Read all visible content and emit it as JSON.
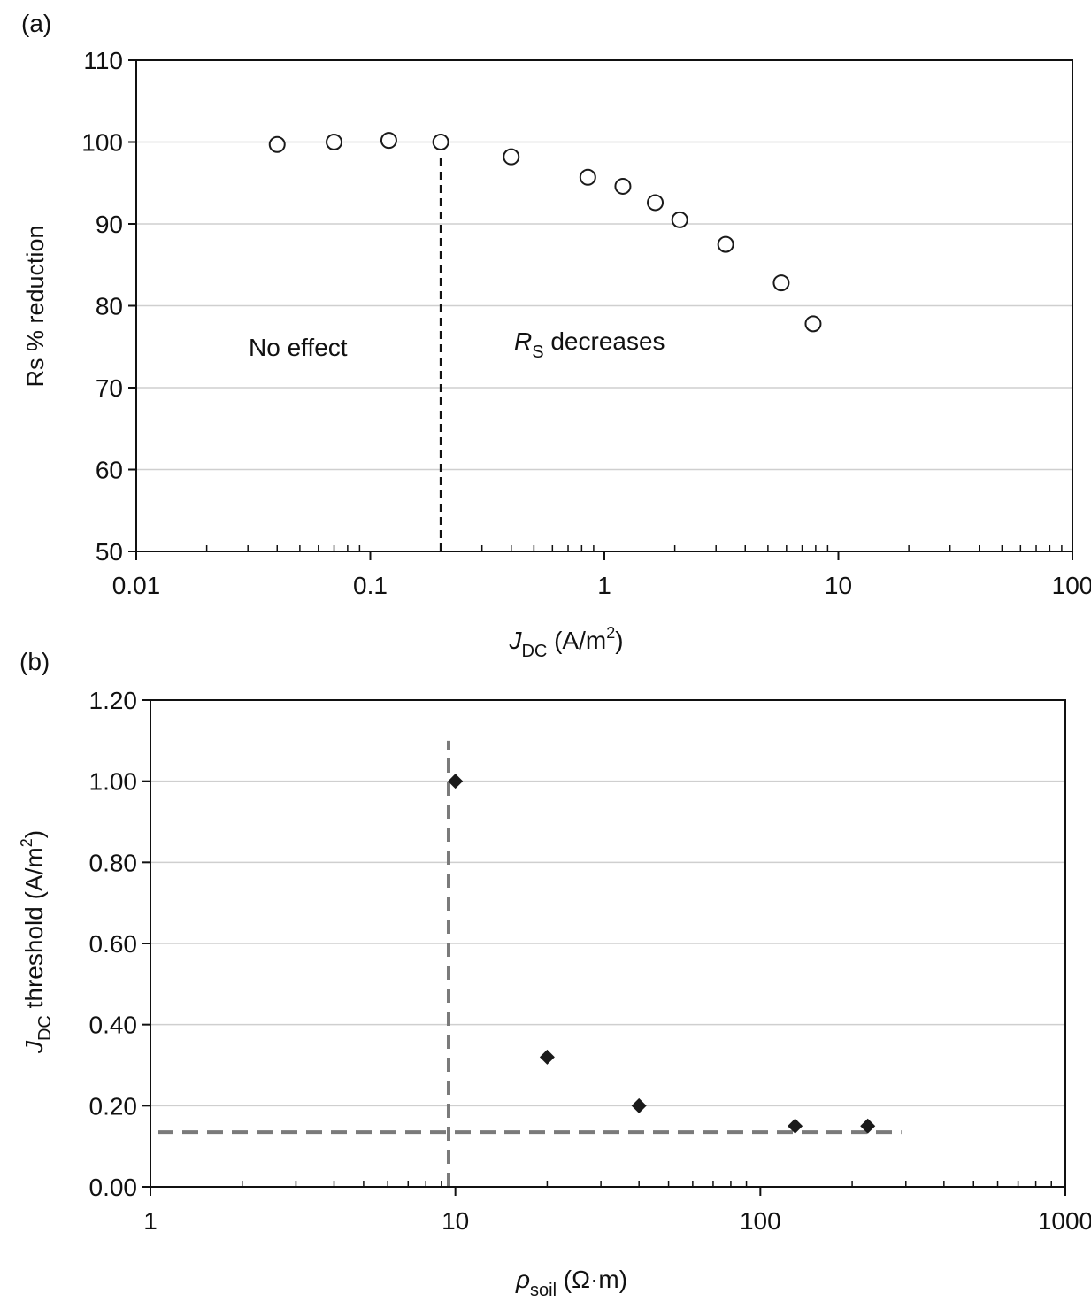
{
  "chart_data": [
    {
      "panel_label": "(a)",
      "type": "scatter",
      "xscale": "log",
      "xlim": [
        0.01,
        100
      ],
      "ylim": [
        50,
        110
      ],
      "xticks": [
        0.01,
        0.1,
        1,
        10,
        100
      ],
      "xtick_labels": [
        "0.01",
        "0.1",
        "1",
        "10",
        "100"
      ],
      "yticks": [
        50,
        60,
        70,
        80,
        90,
        100,
        110
      ],
      "ytick_labels": [
        "50",
        "60",
        "70",
        "80",
        "90",
        "100",
        "110"
      ],
      "ylabel": "Rs % reduction",
      "xlabel": {
        "main": "J",
        "sub": "DC",
        "units_pre": " (A/m",
        "sup": "2",
        "units_post": ")"
      },
      "grid": "horizontal",
      "marker": "open-circle",
      "points": [
        {
          "x": 0.04,
          "y": 99.7
        },
        {
          "x": 0.07,
          "y": 100.0
        },
        {
          "x": 0.12,
          "y": 100.2
        },
        {
          "x": 0.2,
          "y": 100.0
        },
        {
          "x": 0.4,
          "y": 98.2
        },
        {
          "x": 0.85,
          "y": 95.7
        },
        {
          "x": 1.2,
          "y": 94.6
        },
        {
          "x": 1.65,
          "y": 92.6
        },
        {
          "x": 2.1,
          "y": 90.5
        },
        {
          "x": 3.3,
          "y": 87.5
        },
        {
          "x": 5.7,
          "y": 82.8
        },
        {
          "x": 7.8,
          "y": 77.8
        }
      ],
      "threshold_line": {
        "x": 0.2,
        "y_from": 50,
        "y_to": 98.5,
        "style": "dashed"
      },
      "annotations": {
        "no_effect": "No effect",
        "decreases_main": "R",
        "decreases_sub": "S",
        "decreases_rest": " decreases"
      }
    },
    {
      "panel_label": "(b)",
      "type": "scatter",
      "xscale": "log",
      "xlim": [
        1,
        1000
      ],
      "ylim": [
        0,
        1.2
      ],
      "xticks": [
        1,
        10,
        100,
        1000
      ],
      "xtick_labels": [
        "1",
        "10",
        "100",
        "1000"
      ],
      "yticks": [
        0,
        0.2,
        0.4,
        0.6,
        0.8,
        1.0,
        1.2
      ],
      "ytick_labels": [
        "0.00",
        "0.20",
        "0.40",
        "0.60",
        "0.80",
        "1.00",
        "1.20"
      ],
      "ylabel": {
        "main": "J",
        "sub": "DC",
        "rest": " threshold (A/m",
        "sup": "2",
        "end": ")"
      },
      "xlabel": {
        "main": "ρ",
        "sub": "soil",
        "units": " (Ω·m)"
      },
      "grid": "horizontal",
      "marker": "filled-diamond",
      "points": [
        {
          "x": 10,
          "y": 1.0
        },
        {
          "x": 20,
          "y": 0.32
        },
        {
          "x": 40,
          "y": 0.2
        },
        {
          "x": 130,
          "y": 0.15
        },
        {
          "x": 225,
          "y": 0.15
        }
      ],
      "vertical_dashed": {
        "x": 9.5,
        "y_from": 0,
        "y_to": 1.1
      },
      "horizontal_dashed": {
        "y": 0.135,
        "x_from": 1,
        "x_to": 290
      }
    }
  ],
  "colors": {
    "axis": "#111111",
    "grid": "#cfcfcf",
    "dash_a": "#111111",
    "dash_b": "#7a7a7a",
    "marker": "#1a1a1a"
  }
}
